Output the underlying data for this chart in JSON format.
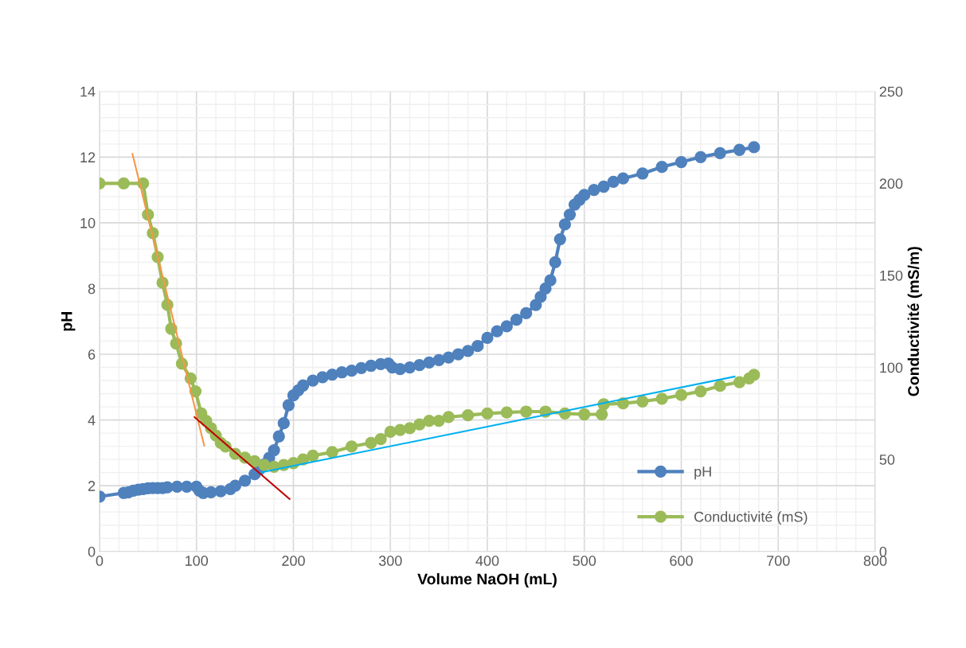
{
  "chart_data": {
    "type": "line",
    "xlabel": "Volume NaOH (mL)",
    "ylabel": "pH",
    "y2label": "Conductivité (mS/m)",
    "xlim": [
      0,
      800
    ],
    "xticks": [
      0,
      100,
      200,
      300,
      400,
      500,
      600,
      700,
      800
    ],
    "ylim": [
      0,
      14
    ],
    "yticks": [
      0,
      2,
      4,
      6,
      8,
      10,
      12,
      14
    ],
    "y2lim": [
      0,
      250
    ],
    "y2ticks": [
      0,
      50,
      100,
      150,
      200,
      250
    ],
    "grid": true,
    "legend": "bottom right",
    "marker": "circle",
    "line_style": "solid",
    "series": [
      {
        "name": "pH",
        "color": "#4f81bd",
        "x": [
          0,
          25,
          30,
          35,
          40,
          45,
          50,
          55,
          60,
          65,
          70,
          80,
          90,
          100,
          103,
          107,
          115,
          125,
          135,
          140,
          150,
          160,
          165,
          170,
          175,
          180,
          185,
          190,
          195,
          200,
          205,
          210,
          220,
          230,
          240,
          250,
          260,
          270,
          280,
          290,
          298,
          302,
          310,
          320,
          330,
          340,
          350,
          360,
          370,
          380,
          390,
          400,
          410,
          420,
          430,
          440,
          450,
          455,
          460,
          465,
          470,
          475,
          480,
          485,
          490,
          495,
          500,
          510,
          520,
          530,
          540,
          560,
          580,
          600,
          620,
          640,
          660,
          675
        ],
        "values": [
          1.67,
          1.78,
          1.8,
          1.85,
          1.88,
          1.9,
          1.92,
          1.93,
          1.93,
          1.93,
          1.95,
          1.97,
          1.97,
          1.97,
          1.85,
          1.78,
          1.8,
          1.83,
          1.9,
          2.0,
          2.15,
          2.35,
          2.5,
          2.65,
          2.85,
          3.08,
          3.5,
          3.9,
          4.45,
          4.75,
          4.9,
          5.05,
          5.2,
          5.3,
          5.38,
          5.45,
          5.5,
          5.58,
          5.65,
          5.7,
          5.72,
          5.6,
          5.55,
          5.6,
          5.67,
          5.75,
          5.82,
          5.9,
          6.0,
          6.1,
          6.25,
          6.5,
          6.7,
          6.85,
          7.05,
          7.25,
          7.5,
          7.75,
          8.0,
          8.25,
          8.8,
          9.5,
          9.95,
          10.25,
          10.55,
          10.7,
          10.85,
          11.0,
          11.1,
          11.25,
          11.35,
          11.5,
          11.7,
          11.85,
          12.0,
          12.12,
          12.22,
          12.3
        ]
      },
      {
        "name": "Conductivité (mS)",
        "color": "#9bbb59",
        "axis": "y2",
        "x": [
          0,
          25,
          45,
          50,
          55,
          60,
          65,
          70,
          74,
          79,
          85,
          94,
          99,
          105,
          110,
          115,
          120,
          125,
          130,
          140,
          150,
          160,
          170,
          180,
          190,
          200,
          210,
          220,
          240,
          260,
          280,
          290,
          300,
          310,
          320,
          330,
          340,
          350,
          360,
          380,
          400,
          420,
          440,
          460,
          480,
          500,
          518,
          520,
          540,
          560,
          580,
          600,
          620,
          640,
          660,
          670,
          675
        ],
        "values": [
          200,
          200,
          200,
          183,
          173,
          160,
          146,
          134,
          121,
          113,
          102,
          94,
          87,
          75,
          71,
          67,
          63,
          59,
          57,
          53,
          51,
          49,
          47,
          46,
          47,
          48,
          50,
          52,
          54,
          57,
          59,
          61,
          65,
          66,
          67,
          69,
          71,
          71,
          73,
          74,
          75,
          75.5,
          76,
          76,
          75,
          74.5,
          74.5,
          80,
          80.5,
          81.5,
          83,
          85,
          87,
          90,
          92,
          94,
          96
        ]
      },
      {
        "color": "#f79646",
        "axis": "y2",
        "marker": "none",
        "x": [
          34,
          108
        ],
        "values": [
          216,
          57.5
        ]
      },
      {
        "color": "#c00000",
        "axis": "y2",
        "marker": "none",
        "x": [
          98,
          196
        ],
        "values": [
          73,
          28.5
        ]
      },
      {
        "color": "#00b0f0",
        "axis": "y2",
        "marker": "none",
        "x": [
          167,
          655
        ],
        "values": [
          43,
          95
        ]
      }
    ]
  }
}
